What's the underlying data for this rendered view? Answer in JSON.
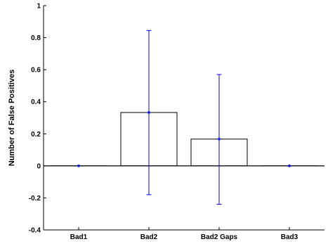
{
  "chart_data": {
    "type": "bar",
    "title": "",
    "xlabel": "",
    "ylabel": "Number of False Positives",
    "categories": [
      "Bad1",
      "Bad2",
      "Bad2 Gaps",
      "Bad3"
    ],
    "values": [
      0,
      0.333,
      0.167,
      0
    ],
    "error_low": [
      0,
      -0.18,
      -0.24,
      0
    ],
    "error_high": [
      0,
      0.845,
      0.57,
      0
    ],
    "ylim": [
      -0.4,
      1
    ],
    "yticks": [
      "-0.4",
      "-0.2",
      "0",
      "0.2",
      "0.4",
      "0.6",
      "0.8",
      "1"
    ],
    "grid": false,
    "bar_fill_color": "#ffffff",
    "bar_edge_color": "#000000",
    "errorbar_color": "#0000ff"
  }
}
